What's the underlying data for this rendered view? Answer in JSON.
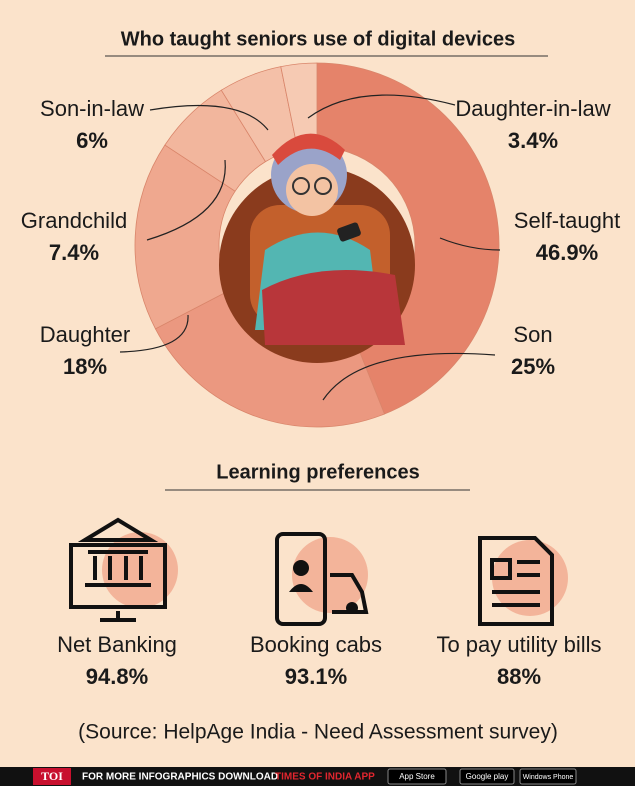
{
  "chart_data": {
    "type": "pie",
    "title": "Who taught seniors use of digital devices",
    "categories": [
      "Self-taught",
      "Son",
      "Daughter",
      "Grandchild",
      "Son-in-law",
      "Daughter-in-law"
    ],
    "values": [
      46.9,
      25,
      18,
      7.4,
      6,
      3.4
    ],
    "value_labels": [
      "46.9%",
      "25%",
      "18%",
      "7.4%",
      "6%",
      "3.4%"
    ],
    "colors": [
      "#e5836a",
      "#eb9880",
      "#efa88f",
      "#f2b69d",
      "#f4c0a8",
      "#f6cab3"
    ]
  },
  "learning_preferences": {
    "title": "Learning preferences",
    "items": [
      {
        "label": "Net Banking",
        "value": "94.8%"
      },
      {
        "label": "Booking cabs",
        "value": "93.1%"
      },
      {
        "label": "To pay utility bills",
        "value": "88%"
      }
    ]
  },
  "source": "(Source: HelpAge India - Need Assessment survey)",
  "footer": {
    "brand": "TOI",
    "text": "FOR MORE  INFOGRAPHICS DOWNLOAD",
    "app": "TIMES OF INDIA APP",
    "badges": [
      "App Store",
      "Google play",
      "Windows Phone"
    ]
  }
}
